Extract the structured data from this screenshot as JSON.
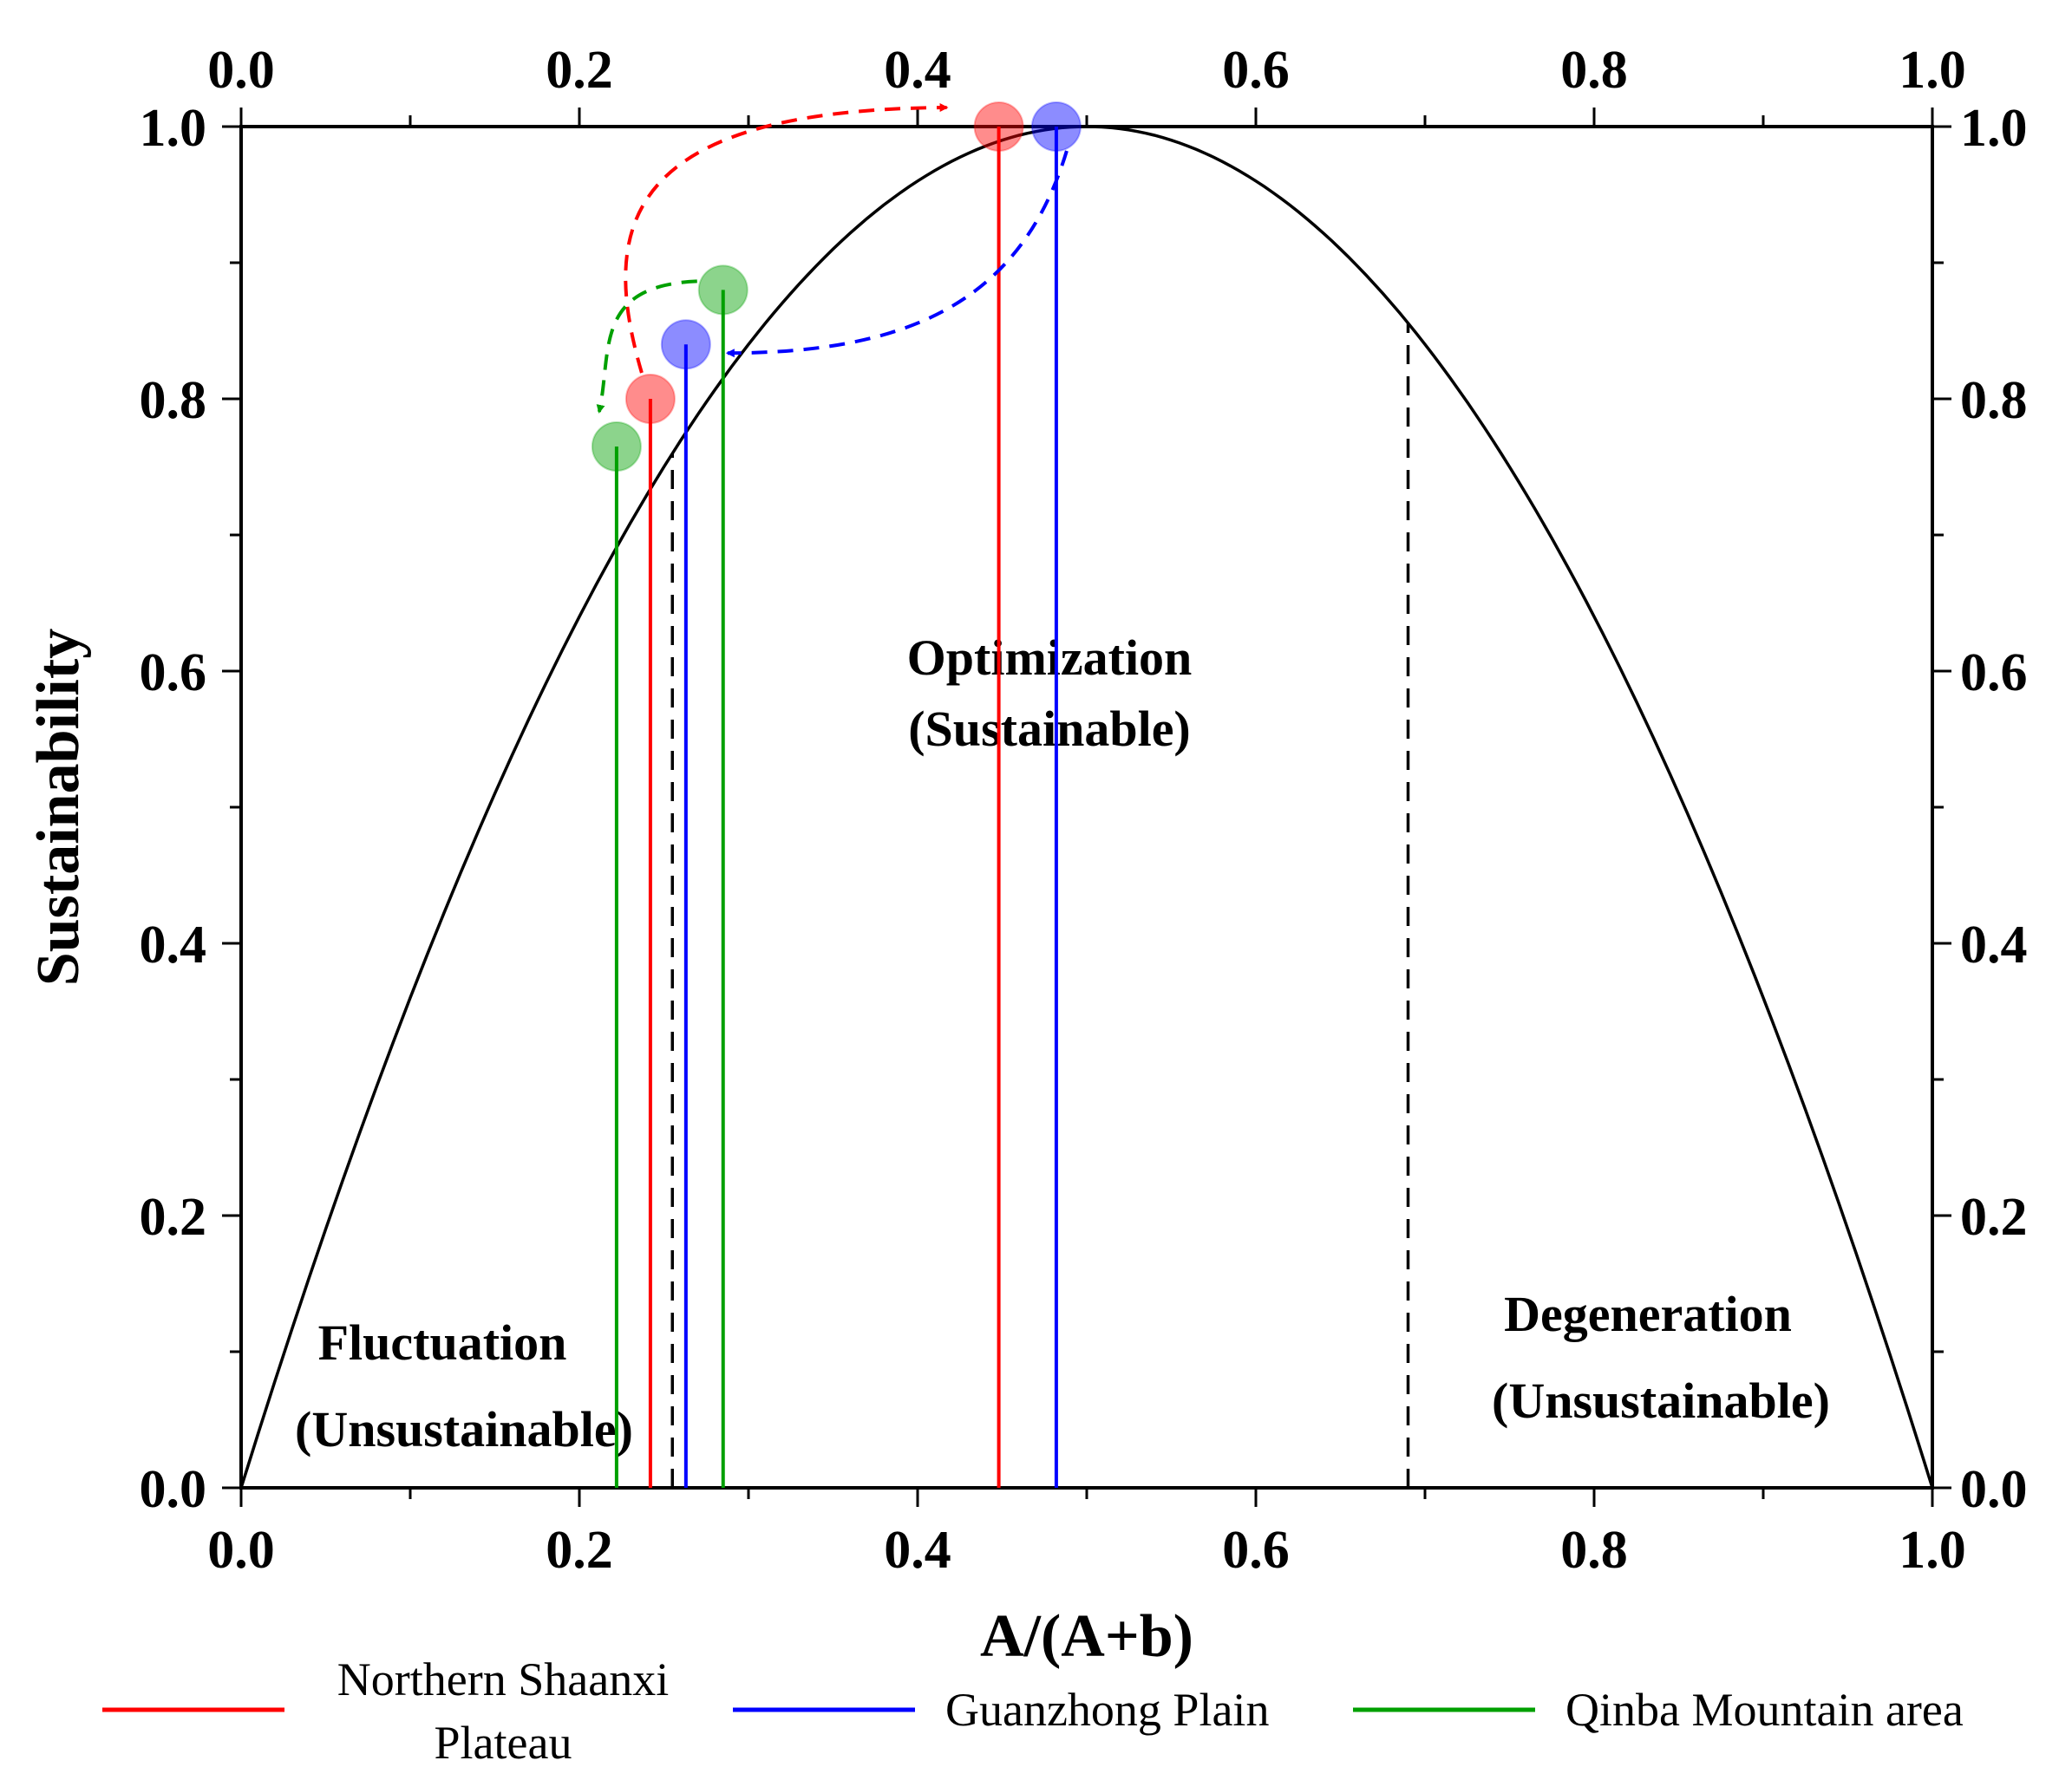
{
  "chart_data": {
    "type": "line",
    "title": "",
    "xlabel": "A/(A+b)",
    "ylabel": "Sustainability",
    "xlim": [
      0.0,
      1.0
    ],
    "ylim": [
      0.0,
      1.0
    ],
    "x_ticks": [
      "0.0",
      "0.2",
      "0.4",
      "0.6",
      "0.8",
      "1.0"
    ],
    "y_ticks": [
      "0.0",
      "0.2",
      "0.4",
      "0.6",
      "0.8",
      "1.0"
    ],
    "top_ticks": [
      "0.0",
      "0.2",
      "0.4",
      "0.6",
      "0.8",
      "1.0"
    ],
    "right_ticks": [
      "0.0",
      "0.2",
      "0.4",
      "0.6",
      "0.8",
      "1.0"
    ],
    "curve": {
      "formula": "4x(1-x)",
      "color": "#000000"
    },
    "thresholds": [
      0.255,
      0.69
    ],
    "regions": [
      {
        "line1": "Fluctuation",
        "line2": "(Unsustainable)"
      },
      {
        "line1": "Optimization",
        "line2": "(Sustainable)"
      },
      {
        "line1": "Degeneration",
        "line2": "(Unsustainable)"
      }
    ],
    "series": [
      {
        "name": "Northern Shaanxi Plateau",
        "legend_line1": "Northern Shaanxi",
        "legend_line2": "Plateau",
        "color": "#ff0000",
        "points": [
          {
            "x": 0.242,
            "y": 0.8
          },
          {
            "x": 0.448,
            "y": 1.0
          }
        ]
      },
      {
        "name": "Guanzhong Plain",
        "legend_line1": "Guanzhong Plain",
        "legend_line2": "",
        "color": "#0000ff",
        "points": [
          {
            "x": 0.482,
            "y": 1.0
          },
          {
            "x": 0.263,
            "y": 0.84
          }
        ]
      },
      {
        "name": "Qinba Mountain area",
        "legend_line1": "Qinba Mountain area",
        "legend_line2": "",
        "color": "#00a000",
        "points": [
          {
            "x": 0.285,
            "y": 0.88
          },
          {
            "x": 0.222,
            "y": 0.765
          }
        ]
      }
    ]
  }
}
